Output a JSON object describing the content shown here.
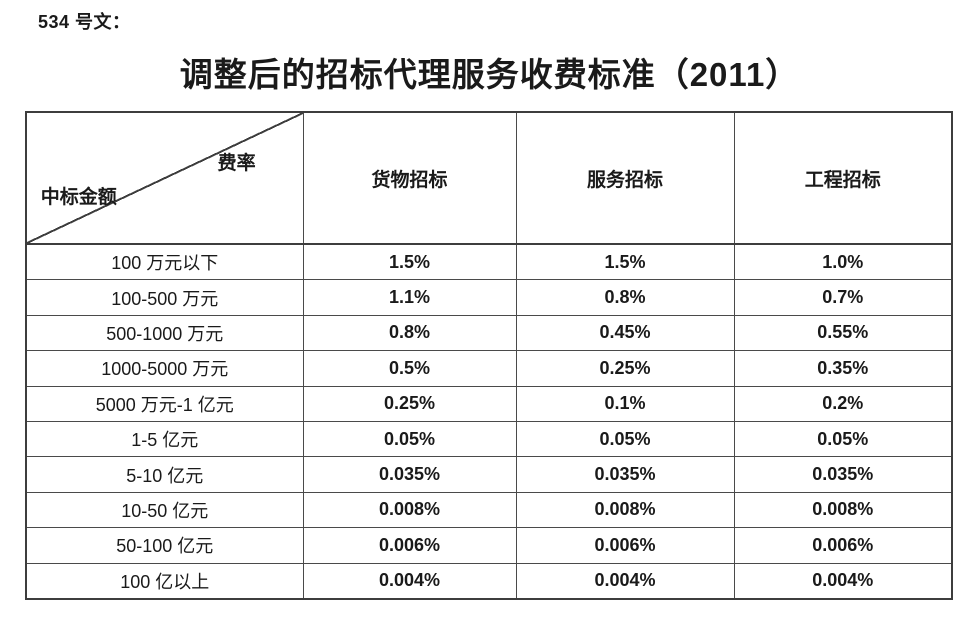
{
  "doc": {
    "reference": "534 号文：",
    "title": "调整后的招标代理服务收费标准（2011）"
  },
  "colors": {
    "text": "#1a1a1a",
    "table_border": "#4a4a4a",
    "background": "#ffffff"
  },
  "table": {
    "corner": {
      "top_right": "费率",
      "bottom_left": "中标金额"
    },
    "columns": [
      "货物招标",
      "服务招标",
      "工程招标"
    ],
    "rows": [
      {
        "amount": "100 万元以下",
        "goods": "1.5%",
        "service": "1.5%",
        "engineering": "1.0%"
      },
      {
        "amount": "100-500 万元",
        "goods": "1.1%",
        "service": "0.8%",
        "engineering": "0.7%"
      },
      {
        "amount": "500-1000 万元",
        "goods": "0.8%",
        "service": "0.45%",
        "engineering": "0.55%"
      },
      {
        "amount": "1000-5000 万元",
        "goods": "0.5%",
        "service": "0.25%",
        "engineering": "0.35%"
      },
      {
        "amount": "5000 万元-1 亿元",
        "goods": "0.25%",
        "service": "0.1%",
        "engineering": "0.2%"
      },
      {
        "amount": "1-5 亿元",
        "goods": "0.05%",
        "service": "0.05%",
        "engineering": "0.05%"
      },
      {
        "amount": "5-10 亿元",
        "goods": "0.035%",
        "service": "0.035%",
        "engineering": "0.035%"
      },
      {
        "amount": "10-50 亿元",
        "goods": "0.008%",
        "service": "0.008%",
        "engineering": "0.008%"
      },
      {
        "amount": "50-100 亿元",
        "goods": "0.006%",
        "service": "0.006%",
        "engineering": "0.006%"
      },
      {
        "amount": "100 亿以上",
        "goods": "0.004%",
        "service": "0.004%",
        "engineering": "0.004%"
      }
    ]
  }
}
